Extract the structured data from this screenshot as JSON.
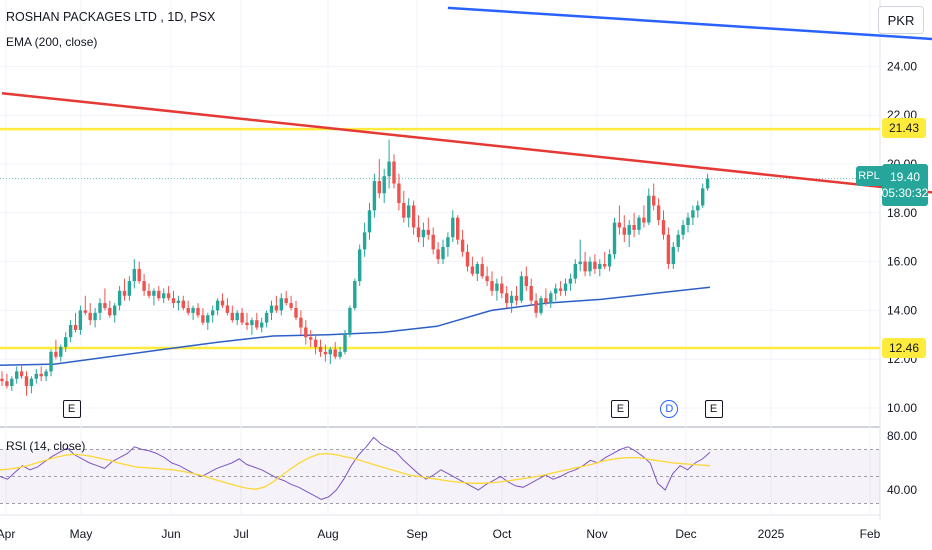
{
  "legend": {
    "title": "ROSHAN PACKAGES LTD , 1D, PSX",
    "ema": "EMA (200, close)",
    "rsi": "RSI (14, close)"
  },
  "currency": "PKR",
  "price_tags": {
    "upper_level": "21.43",
    "lower_level": "12.46",
    "symbol": "RPL",
    "last_price": "19.40",
    "countdown": "05:30:32"
  },
  "colors": {
    "up": "#26a69a",
    "down": "#ef5350",
    "ema": "#2e5fc7",
    "resistance_line": "#e53935",
    "upper_trend_line": "#2962ff",
    "horizontal_levels": "#ffeb3b",
    "rsi_line": "#7e57c2",
    "rsi_ma": "#fdd835"
  },
  "events": [
    {
      "label": "E",
      "date_index": 14
    },
    {
      "label": "E",
      "date_index": 126
    },
    {
      "label": "D",
      "date_index": 136
    },
    {
      "label": "E",
      "date_index": 145
    }
  ],
  "chart_data": [
    {
      "type": "candlestick",
      "title": "ROSHAN PACKAGES LTD , 1D, PSX",
      "x_tick_labels": [
        "Apr",
        "May",
        "Jun",
        "Jul",
        "Aug",
        "Sep",
        "Oct",
        "Nov",
        "Dec",
        "2025",
        "Feb"
      ],
      "y_tick_labels": [
        "10.00",
        "12.00",
        "14.00",
        "16.00",
        "18.00",
        "20.00",
        "22.00",
        "24.00"
      ],
      "ylim": [
        9.5,
        26.5
      ],
      "grid": true,
      "horizontal_levels": [
        21.43,
        12.46
      ],
      "trend_lines": [
        {
          "name": "resistance",
          "from": [
            0,
            22.9
          ],
          "to": [
            215,
            18.3
          ]
        },
        {
          "name": "upper",
          "from": [
            91,
            26.4
          ],
          "to": [
            215,
            24.8
          ]
        }
      ],
      "ema_200": [
        11.75,
        11.8,
        12.1,
        12.4,
        12.7,
        12.95,
        13.0,
        13.1,
        13.35,
        14.0,
        14.3,
        14.45,
        14.7,
        14.95
      ],
      "ohlc": [
        [
          11.2,
          11.5,
          10.9,
          11.1
        ],
        [
          11.1,
          11.4,
          10.8,
          10.9
        ],
        [
          10.9,
          11.3,
          10.7,
          11.2
        ],
        [
          11.2,
          11.7,
          11.0,
          11.5
        ],
        [
          11.5,
          11.8,
          11.2,
          11.3
        ],
        [
          11.3,
          11.5,
          10.5,
          10.9
        ],
        [
          10.9,
          11.3,
          10.6,
          11.2
        ],
        [
          11.2,
          11.6,
          11.0,
          11.4
        ],
        [
          11.4,
          11.7,
          11.1,
          11.3
        ],
        [
          11.3,
          11.6,
          11.1,
          11.5
        ],
        [
          11.5,
          12.4,
          11.3,
          12.3
        ],
        [
          12.3,
          12.8,
          12.0,
          12.1
        ],
        [
          12.1,
          12.6,
          11.9,
          12.5
        ],
        [
          12.5,
          13.1,
          12.3,
          12.9
        ],
        [
          12.9,
          13.6,
          12.7,
          13.4
        ],
        [
          13.4,
          13.9,
          13.1,
          13.2
        ],
        [
          13.2,
          14.2,
          13.0,
          14.0
        ],
        [
          14.0,
          14.6,
          13.8,
          13.9
        ],
        [
          13.9,
          14.3,
          13.4,
          13.6
        ],
        [
          13.6,
          14.1,
          13.3,
          13.9
        ],
        [
          13.9,
          14.5,
          13.6,
          14.3
        ],
        [
          14.3,
          14.9,
          14.0,
          14.1
        ],
        [
          14.1,
          14.4,
          13.7,
          13.8
        ],
        [
          13.8,
          14.3,
          13.5,
          14.2
        ],
        [
          14.2,
          15.0,
          14.0,
          14.8
        ],
        [
          14.8,
          15.3,
          14.4,
          14.6
        ],
        [
          14.6,
          15.4,
          14.4,
          15.2
        ],
        [
          15.2,
          16.1,
          14.9,
          15.7
        ],
        [
          15.7,
          16.0,
          15.1,
          15.2
        ],
        [
          15.2,
          15.5,
          14.6,
          14.8
        ],
        [
          14.8,
          15.1,
          14.5,
          14.6
        ],
        [
          14.6,
          14.9,
          14.2,
          14.8
        ],
        [
          14.8,
          15.0,
          14.4,
          14.5
        ],
        [
          14.5,
          14.9,
          14.3,
          14.7
        ],
        [
          14.7,
          15.0,
          14.4,
          14.5
        ],
        [
          14.5,
          14.8,
          14.1,
          14.3
        ],
        [
          14.3,
          14.6,
          14.0,
          14.4
        ],
        [
          14.4,
          14.6,
          14.0,
          14.1
        ],
        [
          14.1,
          14.4,
          13.8,
          13.9
        ],
        [
          13.9,
          14.2,
          13.6,
          14.1
        ],
        [
          14.1,
          14.3,
          13.7,
          13.8
        ],
        [
          13.8,
          14.1,
          13.4,
          13.5
        ],
        [
          13.5,
          13.9,
          13.2,
          13.8
        ],
        [
          13.8,
          14.2,
          13.5,
          14.0
        ],
        [
          14.0,
          14.5,
          13.8,
          14.4
        ],
        [
          14.4,
          14.7,
          14.1,
          14.2
        ],
        [
          14.2,
          14.5,
          13.8,
          13.9
        ],
        [
          13.9,
          14.2,
          13.5,
          13.6
        ],
        [
          13.6,
          14.0,
          13.4,
          13.9
        ],
        [
          13.9,
          14.1,
          13.4,
          13.5
        ],
        [
          13.5,
          13.9,
          13.2,
          13.4
        ],
        [
          13.4,
          13.7,
          13.0,
          13.6
        ],
        [
          13.6,
          13.9,
          13.2,
          13.3
        ],
        [
          13.3,
          13.7,
          13.1,
          13.5
        ],
        [
          13.5,
          14.0,
          13.3,
          13.9
        ],
        [
          13.9,
          14.4,
          13.6,
          14.2
        ],
        [
          14.2,
          14.6,
          13.9,
          14.0
        ],
        [
          14.0,
          14.7,
          13.8,
          14.5
        ],
        [
          14.5,
          14.8,
          14.2,
          14.3
        ],
        [
          14.3,
          14.6,
          14.0,
          14.1
        ],
        [
          14.1,
          14.4,
          13.6,
          13.7
        ],
        [
          13.7,
          14.0,
          13.0,
          13.3
        ],
        [
          13.3,
          13.6,
          12.6,
          12.9
        ],
        [
          12.9,
          13.2,
          12.5,
          12.8
        ],
        [
          12.8,
          13.0,
          12.2,
          12.5
        ],
        [
          12.5,
          12.8,
          12.1,
          12.3
        ],
        [
          12.3,
          12.6,
          11.9,
          12.2
        ],
        [
          12.2,
          12.5,
          11.8,
          12.4
        ],
        [
          12.4,
          12.7,
          12.0,
          12.1
        ],
        [
          12.1,
          12.5,
          12.0,
          12.3
        ],
        [
          12.3,
          13.2,
          12.2,
          13.0
        ],
        [
          13.0,
          14.2,
          12.9,
          14.1
        ],
        [
          14.1,
          15.3,
          14.0,
          15.2
        ],
        [
          15.2,
          16.7,
          15.0,
          16.5
        ],
        [
          16.5,
          17.6,
          16.2,
          17.2
        ],
        [
          17.2,
          18.4,
          16.9,
          18.1
        ],
        [
          18.1,
          19.6,
          17.8,
          19.3
        ],
        [
          19.3,
          20.2,
          18.6,
          18.8
        ],
        [
          18.8,
          19.8,
          18.4,
          19.5
        ],
        [
          19.5,
          21.0,
          19.0,
          20.1
        ],
        [
          20.1,
          20.4,
          19.0,
          19.2
        ],
        [
          19.2,
          19.6,
          18.1,
          18.4
        ],
        [
          18.4,
          18.9,
          17.6,
          17.8
        ],
        [
          17.8,
          18.6,
          17.4,
          18.3
        ],
        [
          18.3,
          18.5,
          17.1,
          17.4
        ],
        [
          17.4,
          17.9,
          16.8,
          17.0
        ],
        [
          17.0,
          17.6,
          16.6,
          17.3
        ],
        [
          17.3,
          17.8,
          16.9,
          17.1
        ],
        [
          17.1,
          17.4,
          16.3,
          16.5
        ],
        [
          16.5,
          16.8,
          15.9,
          16.1
        ],
        [
          16.1,
          16.9,
          15.9,
          16.6
        ],
        [
          16.6,
          17.2,
          16.2,
          17.0
        ],
        [
          17.0,
          18.1,
          16.8,
          17.8
        ],
        [
          17.8,
          17.9,
          16.7,
          16.9
        ],
        [
          16.9,
          17.3,
          16.2,
          16.4
        ],
        [
          16.4,
          16.7,
          15.6,
          15.8
        ],
        [
          15.8,
          16.2,
          15.4,
          15.5
        ],
        [
          15.5,
          16.0,
          15.2,
          15.9
        ],
        [
          15.9,
          16.2,
          15.3,
          15.4
        ],
        [
          15.4,
          15.8,
          15.0,
          15.2
        ],
        [
          15.2,
          15.6,
          14.6,
          14.8
        ],
        [
          14.8,
          15.3,
          14.4,
          15.1
        ],
        [
          15.1,
          15.4,
          14.5,
          14.7
        ],
        [
          14.7,
          15.0,
          14.1,
          14.3
        ],
        [
          14.3,
          14.8,
          13.9,
          14.6
        ],
        [
          14.6,
          15.0,
          14.2,
          14.4
        ],
        [
          14.4,
          15.6,
          14.3,
          15.4
        ],
        [
          15.4,
          15.8,
          14.8,
          15.0
        ],
        [
          15.0,
          15.3,
          14.2,
          14.4
        ],
        [
          14.4,
          14.7,
          13.7,
          13.9
        ],
        [
          13.9,
          14.6,
          13.8,
          14.5
        ],
        [
          14.5,
          14.9,
          14.2,
          14.3
        ],
        [
          14.3,
          14.8,
          14.1,
          14.7
        ],
        [
          14.7,
          15.1,
          14.4,
          14.9
        ],
        [
          14.9,
          15.2,
          14.6,
          14.8
        ],
        [
          14.8,
          15.3,
          14.6,
          15.1
        ],
        [
          15.1,
          15.5,
          14.8,
          15.3
        ],
        [
          15.3,
          16.1,
          15.1,
          15.9
        ],
        [
          15.9,
          16.9,
          15.6,
          16.0
        ],
        [
          16.0,
          16.4,
          15.4,
          15.6
        ],
        [
          15.6,
          16.2,
          15.4,
          16.0
        ],
        [
          16.0,
          16.3,
          15.5,
          15.7
        ],
        [
          15.7,
          16.1,
          15.4,
          15.9
        ],
        [
          15.9,
          16.4,
          15.7,
          15.8
        ],
        [
          15.8,
          16.5,
          15.6,
          16.3
        ],
        [
          16.3,
          17.8,
          16.1,
          17.6
        ],
        [
          17.6,
          18.3,
          17.1,
          17.4
        ],
        [
          17.4,
          17.9,
          16.8,
          17.1
        ],
        [
          17.1,
          17.7,
          16.6,
          17.5
        ],
        [
          17.5,
          18.0,
          17.0,
          17.3
        ],
        [
          17.3,
          17.9,
          17.1,
          17.8
        ],
        [
          17.8,
          18.3,
          17.4,
          17.6
        ],
        [
          17.6,
          19.0,
          17.5,
          18.7
        ],
        [
          18.7,
          19.2,
          18.1,
          18.3
        ],
        [
          18.3,
          18.6,
          17.5,
          17.7
        ],
        [
          17.7,
          18.1,
          16.9,
          17.1
        ],
        [
          17.1,
          17.4,
          15.7,
          15.9
        ],
        [
          15.9,
          16.8,
          15.7,
          16.6
        ],
        [
          16.6,
          17.3,
          16.4,
          17.1
        ],
        [
          17.1,
          17.7,
          16.9,
          17.5
        ],
        [
          17.5,
          18.0,
          17.2,
          17.8
        ],
        [
          17.8,
          18.3,
          17.5,
          18.1
        ],
        [
          18.1,
          18.5,
          17.8,
          18.3
        ],
        [
          18.3,
          19.2,
          18.2,
          19.0
        ],
        [
          19.0,
          19.6,
          18.9,
          19.4
        ]
      ]
    },
    {
      "type": "line",
      "title": "RSI (14, close)",
      "y_tick_labels": [
        "80.00",
        "40.00"
      ],
      "ylim": [
        30,
        82
      ],
      "band": [
        30,
        70
      ],
      "rsi": [
        50,
        48,
        53,
        58,
        55,
        57,
        61,
        65,
        68,
        71,
        66,
        63,
        60,
        58,
        56,
        61,
        64,
        67,
        72,
        70,
        69,
        67,
        64,
        60,
        58,
        55,
        52,
        50,
        53,
        56,
        58,
        60,
        63,
        59,
        57,
        55,
        52,
        49,
        47,
        44,
        42,
        39,
        36,
        33,
        35,
        40,
        48,
        58,
        66,
        72,
        79,
        74,
        71,
        68,
        62,
        57,
        52,
        48,
        51,
        55,
        52,
        49,
        46,
        43,
        40,
        44,
        47,
        50,
        46,
        43,
        42,
        45,
        48,
        51,
        48,
        50,
        53,
        55,
        58,
        62,
        60,
        64,
        67,
        70,
        72,
        69,
        65,
        60,
        45,
        40,
        52,
        58,
        55,
        60,
        63,
        68
      ],
      "rsi_ma": [
        55,
        55.5,
        56.5,
        58,
        60,
        62,
        64,
        65.5,
        66.5,
        66,
        65,
        63.5,
        62,
        60,
        58.5,
        57,
        56.5,
        56,
        55.5,
        55,
        54,
        52.5,
        51,
        49,
        47,
        45,
        43,
        41.5,
        40.5,
        42,
        46,
        51,
        56,
        60.5,
        64,
        66.5,
        67,
        66,
        64.5,
        63,
        61,
        59,
        57,
        55,
        53,
        51,
        50,
        49,
        48,
        47,
        46,
        45.5,
        45,
        45,
        45.5,
        46,
        47,
        48,
        49,
        50,
        51.5,
        53,
        54.5,
        56,
        57.5,
        59,
        61,
        62.5,
        63.5,
        64,
        64,
        63,
        62,
        61,
        60,
        59.5,
        59,
        58.5,
        58
      ]
    }
  ]
}
